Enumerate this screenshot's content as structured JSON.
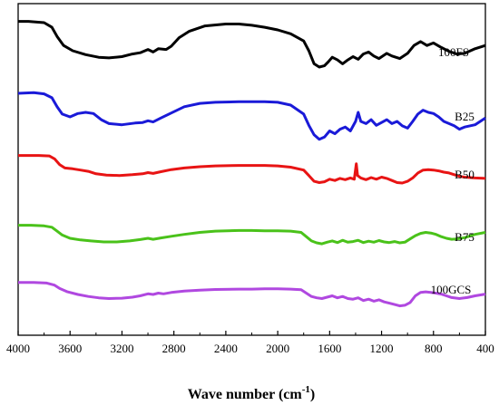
{
  "chart_data": {
    "type": "line",
    "xlabel": "Wave number (cm",
    "xlabel_superscript": "-1",
    "xlabel_close": ")",
    "xlim": [
      4000,
      400
    ],
    "x_ticks": [
      "4000",
      "3600",
      "3200",
      "2800",
      "2400",
      "2000",
      "1600",
      "1200",
      "800",
      "400"
    ],
    "x_tick_values": [
      4000,
      3600,
      3200,
      2800,
      2400,
      2000,
      1600,
      1200,
      800,
      400
    ],
    "y_axis": "stacked offset, no ticks",
    "grid": false,
    "series": [
      {
        "name": "100FS",
        "color": "#000000",
        "points": [
          [
            4000,
            0.95
          ],
          [
            3920,
            0.95
          ],
          [
            3800,
            0.93
          ],
          [
            3740,
            0.86
          ],
          [
            3700,
            0.72
          ],
          [
            3650,
            0.58
          ],
          [
            3580,
            0.5
          ],
          [
            3480,
            0.44
          ],
          [
            3380,
            0.4
          ],
          [
            3300,
            0.39
          ],
          [
            3200,
            0.41
          ],
          [
            3120,
            0.45
          ],
          [
            3060,
            0.47
          ],
          [
            3000,
            0.52
          ],
          [
            2960,
            0.48
          ],
          [
            2920,
            0.53
          ],
          [
            2860,
            0.52
          ],
          [
            2820,
            0.57
          ],
          [
            2760,
            0.7
          ],
          [
            2680,
            0.8
          ],
          [
            2560,
            0.88
          ],
          [
            2400,
            0.91
          ],
          [
            2300,
            0.91
          ],
          [
            2200,
            0.89
          ],
          [
            2100,
            0.86
          ],
          [
            2000,
            0.82
          ],
          [
            1900,
            0.76
          ],
          [
            1800,
            0.65
          ],
          [
            1760,
            0.5
          ],
          [
            1720,
            0.3
          ],
          [
            1680,
            0.25
          ],
          [
            1640,
            0.27
          ],
          [
            1610,
            0.33
          ],
          [
            1580,
            0.4
          ],
          [
            1540,
            0.36
          ],
          [
            1500,
            0.3
          ],
          [
            1460,
            0.36
          ],
          [
            1420,
            0.41
          ],
          [
            1380,
            0.37
          ],
          [
            1340,
            0.45
          ],
          [
            1300,
            0.48
          ],
          [
            1260,
            0.42
          ],
          [
            1220,
            0.38
          ],
          [
            1160,
            0.46
          ],
          [
            1120,
            0.42
          ],
          [
            1060,
            0.38
          ],
          [
            1000,
            0.46
          ],
          [
            950,
            0.58
          ],
          [
            900,
            0.64
          ],
          [
            850,
            0.58
          ],
          [
            800,
            0.62
          ],
          [
            740,
            0.55
          ],
          [
            680,
            0.49
          ],
          [
            620,
            0.45
          ],
          [
            560,
            0.46
          ],
          [
            480,
            0.53
          ],
          [
            400,
            0.58
          ]
        ]
      },
      {
        "name": "B25",
        "color": "#1a1ad8",
        "points": [
          [
            4000,
            0.92
          ],
          [
            3880,
            0.93
          ],
          [
            3800,
            0.91
          ],
          [
            3740,
            0.84
          ],
          [
            3700,
            0.68
          ],
          [
            3660,
            0.55
          ],
          [
            3600,
            0.5
          ],
          [
            3540,
            0.56
          ],
          [
            3480,
            0.58
          ],
          [
            3420,
            0.56
          ],
          [
            3360,
            0.45
          ],
          [
            3300,
            0.38
          ],
          [
            3200,
            0.36
          ],
          [
            3100,
            0.39
          ],
          [
            3040,
            0.4
          ],
          [
            3000,
            0.43
          ],
          [
            2960,
            0.41
          ],
          [
            2900,
            0.48
          ],
          [
            2820,
            0.57
          ],
          [
            2720,
            0.68
          ],
          [
            2600,
            0.74
          ],
          [
            2480,
            0.76
          ],
          [
            2300,
            0.77
          ],
          [
            2200,
            0.77
          ],
          [
            2100,
            0.77
          ],
          [
            2000,
            0.76
          ],
          [
            1900,
            0.71
          ],
          [
            1800,
            0.55
          ],
          [
            1760,
            0.35
          ],
          [
            1720,
            0.18
          ],
          [
            1680,
            0.1
          ],
          [
            1640,
            0.14
          ],
          [
            1600,
            0.25
          ],
          [
            1560,
            0.2
          ],
          [
            1520,
            0.28
          ],
          [
            1480,
            0.32
          ],
          [
            1440,
            0.25
          ],
          [
            1400,
            0.42
          ],
          [
            1380,
            0.58
          ],
          [
            1360,
            0.42
          ],
          [
            1320,
            0.38
          ],
          [
            1280,
            0.45
          ],
          [
            1240,
            0.35
          ],
          [
            1200,
            0.4
          ],
          [
            1160,
            0.45
          ],
          [
            1120,
            0.38
          ],
          [
            1080,
            0.42
          ],
          [
            1040,
            0.34
          ],
          [
            1000,
            0.3
          ],
          [
            960,
            0.42
          ],
          [
            920,
            0.55
          ],
          [
            880,
            0.62
          ],
          [
            840,
            0.58
          ],
          [
            800,
            0.56
          ],
          [
            760,
            0.5
          ],
          [
            720,
            0.42
          ],
          [
            680,
            0.38
          ],
          [
            640,
            0.34
          ],
          [
            600,
            0.28
          ],
          [
            560,
            0.32
          ],
          [
            480,
            0.36
          ],
          [
            400,
            0.48
          ]
        ]
      },
      {
        "name": "B50",
        "color": "#e81414",
        "points": [
          [
            4000,
            0.9
          ],
          [
            3840,
            0.9
          ],
          [
            3760,
            0.89
          ],
          [
            3720,
            0.82
          ],
          [
            3680,
            0.68
          ],
          [
            3640,
            0.6
          ],
          [
            3580,
            0.58
          ],
          [
            3520,
            0.55
          ],
          [
            3460,
            0.52
          ],
          [
            3400,
            0.46
          ],
          [
            3320,
            0.43
          ],
          [
            3220,
            0.42
          ],
          [
            3120,
            0.44
          ],
          [
            3040,
            0.46
          ],
          [
            3000,
            0.49
          ],
          [
            2960,
            0.47
          ],
          [
            2900,
            0.51
          ],
          [
            2820,
            0.56
          ],
          [
            2720,
            0.6
          ],
          [
            2600,
            0.63
          ],
          [
            2480,
            0.65
          ],
          [
            2300,
            0.66
          ],
          [
            2200,
            0.66
          ],
          [
            2100,
            0.66
          ],
          [
            2000,
            0.65
          ],
          [
            1900,
            0.62
          ],
          [
            1800,
            0.55
          ],
          [
            1760,
            0.42
          ],
          [
            1720,
            0.28
          ],
          [
            1680,
            0.25
          ],
          [
            1640,
            0.27
          ],
          [
            1600,
            0.33
          ],
          [
            1560,
            0.3
          ],
          [
            1520,
            0.35
          ],
          [
            1480,
            0.32
          ],
          [
            1440,
            0.36
          ],
          [
            1410,
            0.33
          ],
          [
            1395,
            0.7
          ],
          [
            1385,
            0.42
          ],
          [
            1360,
            0.36
          ],
          [
            1320,
            0.32
          ],
          [
            1280,
            0.37
          ],
          [
            1240,
            0.33
          ],
          [
            1200,
            0.38
          ],
          [
            1160,
            0.35
          ],
          [
            1120,
            0.3
          ],
          [
            1080,
            0.25
          ],
          [
            1040,
            0.24
          ],
          [
            1000,
            0.28
          ],
          [
            960,
            0.36
          ],
          [
            920,
            0.48
          ],
          [
            880,
            0.55
          ],
          [
            840,
            0.56
          ],
          [
            800,
            0.55
          ],
          [
            760,
            0.53
          ],
          [
            720,
            0.5
          ],
          [
            680,
            0.48
          ],
          [
            640,
            0.44
          ],
          [
            600,
            0.4
          ],
          [
            560,
            0.38
          ],
          [
            480,
            0.36
          ],
          [
            400,
            0.35
          ]
        ]
      },
      {
        "name": "B75",
        "color": "#4ac21a",
        "points": [
          [
            4000,
            0.9
          ],
          [
            3900,
            0.9
          ],
          [
            3800,
            0.88
          ],
          [
            3740,
            0.84
          ],
          [
            3700,
            0.72
          ],
          [
            3660,
            0.6
          ],
          [
            3600,
            0.5
          ],
          [
            3520,
            0.45
          ],
          [
            3440,
            0.42
          ],
          [
            3340,
            0.39
          ],
          [
            3240,
            0.39
          ],
          [
            3140,
            0.42
          ],
          [
            3060,
            0.46
          ],
          [
            3000,
            0.5
          ],
          [
            2960,
            0.47
          ],
          [
            2900,
            0.51
          ],
          [
            2820,
            0.56
          ],
          [
            2720,
            0.62
          ],
          [
            2600,
            0.68
          ],
          [
            2480,
            0.72
          ],
          [
            2300,
            0.74
          ],
          [
            2200,
            0.74
          ],
          [
            2100,
            0.73
          ],
          [
            2000,
            0.73
          ],
          [
            1900,
            0.72
          ],
          [
            1820,
            0.68
          ],
          [
            1780,
            0.55
          ],
          [
            1740,
            0.42
          ],
          [
            1700,
            0.36
          ],
          [
            1660,
            0.33
          ],
          [
            1620,
            0.38
          ],
          [
            1580,
            0.42
          ],
          [
            1540,
            0.37
          ],
          [
            1500,
            0.44
          ],
          [
            1460,
            0.38
          ],
          [
            1420,
            0.4
          ],
          [
            1380,
            0.44
          ],
          [
            1340,
            0.37
          ],
          [
            1300,
            0.41
          ],
          [
            1260,
            0.38
          ],
          [
            1220,
            0.43
          ],
          [
            1180,
            0.39
          ],
          [
            1140,
            0.37
          ],
          [
            1100,
            0.4
          ],
          [
            1060,
            0.36
          ],
          [
            1020,
            0.38
          ],
          [
            980,
            0.48
          ],
          [
            940,
            0.58
          ],
          [
            900,
            0.65
          ],
          [
            860,
            0.68
          ],
          [
            820,
            0.66
          ],
          [
            780,
            0.62
          ],
          [
            740,
            0.55
          ],
          [
            700,
            0.5
          ],
          [
            660,
            0.47
          ],
          [
            620,
            0.48
          ],
          [
            560,
            0.52
          ],
          [
            480,
            0.62
          ],
          [
            400,
            0.68
          ]
        ]
      },
      {
        "name": "100GCS",
        "color": "#b048e0",
        "points": [
          [
            4000,
            0.9
          ],
          [
            3880,
            0.9
          ],
          [
            3780,
            0.88
          ],
          [
            3720,
            0.82
          ],
          [
            3680,
            0.72
          ],
          [
            3620,
            0.62
          ],
          [
            3540,
            0.54
          ],
          [
            3460,
            0.48
          ],
          [
            3380,
            0.44
          ],
          [
            3300,
            0.42
          ],
          [
            3200,
            0.43
          ],
          [
            3120,
            0.46
          ],
          [
            3060,
            0.5
          ],
          [
            3000,
            0.56
          ],
          [
            2960,
            0.54
          ],
          [
            2920,
            0.58
          ],
          [
            2880,
            0.56
          ],
          [
            2820,
            0.6
          ],
          [
            2720,
            0.64
          ],
          [
            2600,
            0.67
          ],
          [
            2480,
            0.69
          ],
          [
            2300,
            0.7
          ],
          [
            2200,
            0.7
          ],
          [
            2100,
            0.71
          ],
          [
            2000,
            0.71
          ],
          [
            1900,
            0.7
          ],
          [
            1820,
            0.68
          ],
          [
            1780,
            0.58
          ],
          [
            1740,
            0.48
          ],
          [
            1700,
            0.44
          ],
          [
            1660,
            0.42
          ],
          [
            1620,
            0.46
          ],
          [
            1580,
            0.5
          ],
          [
            1540,
            0.44
          ],
          [
            1500,
            0.48
          ],
          [
            1460,
            0.42
          ],
          [
            1420,
            0.4
          ],
          [
            1380,
            0.44
          ],
          [
            1340,
            0.36
          ],
          [
            1300,
            0.4
          ],
          [
            1260,
            0.34
          ],
          [
            1220,
            0.38
          ],
          [
            1180,
            0.32
          ],
          [
            1140,
            0.28
          ],
          [
            1100,
            0.24
          ],
          [
            1060,
            0.2
          ],
          [
            1020,
            0.22
          ],
          [
            980,
            0.3
          ],
          [
            940,
            0.5
          ],
          [
            900,
            0.6
          ],
          [
            860,
            0.62
          ],
          [
            820,
            0.6
          ],
          [
            780,
            0.58
          ],
          [
            740,
            0.55
          ],
          [
            700,
            0.5
          ],
          [
            660,
            0.45
          ],
          [
            600,
            0.42
          ],
          [
            540,
            0.45
          ],
          [
            480,
            0.5
          ],
          [
            400,
            0.55
          ]
        ]
      }
    ]
  }
}
